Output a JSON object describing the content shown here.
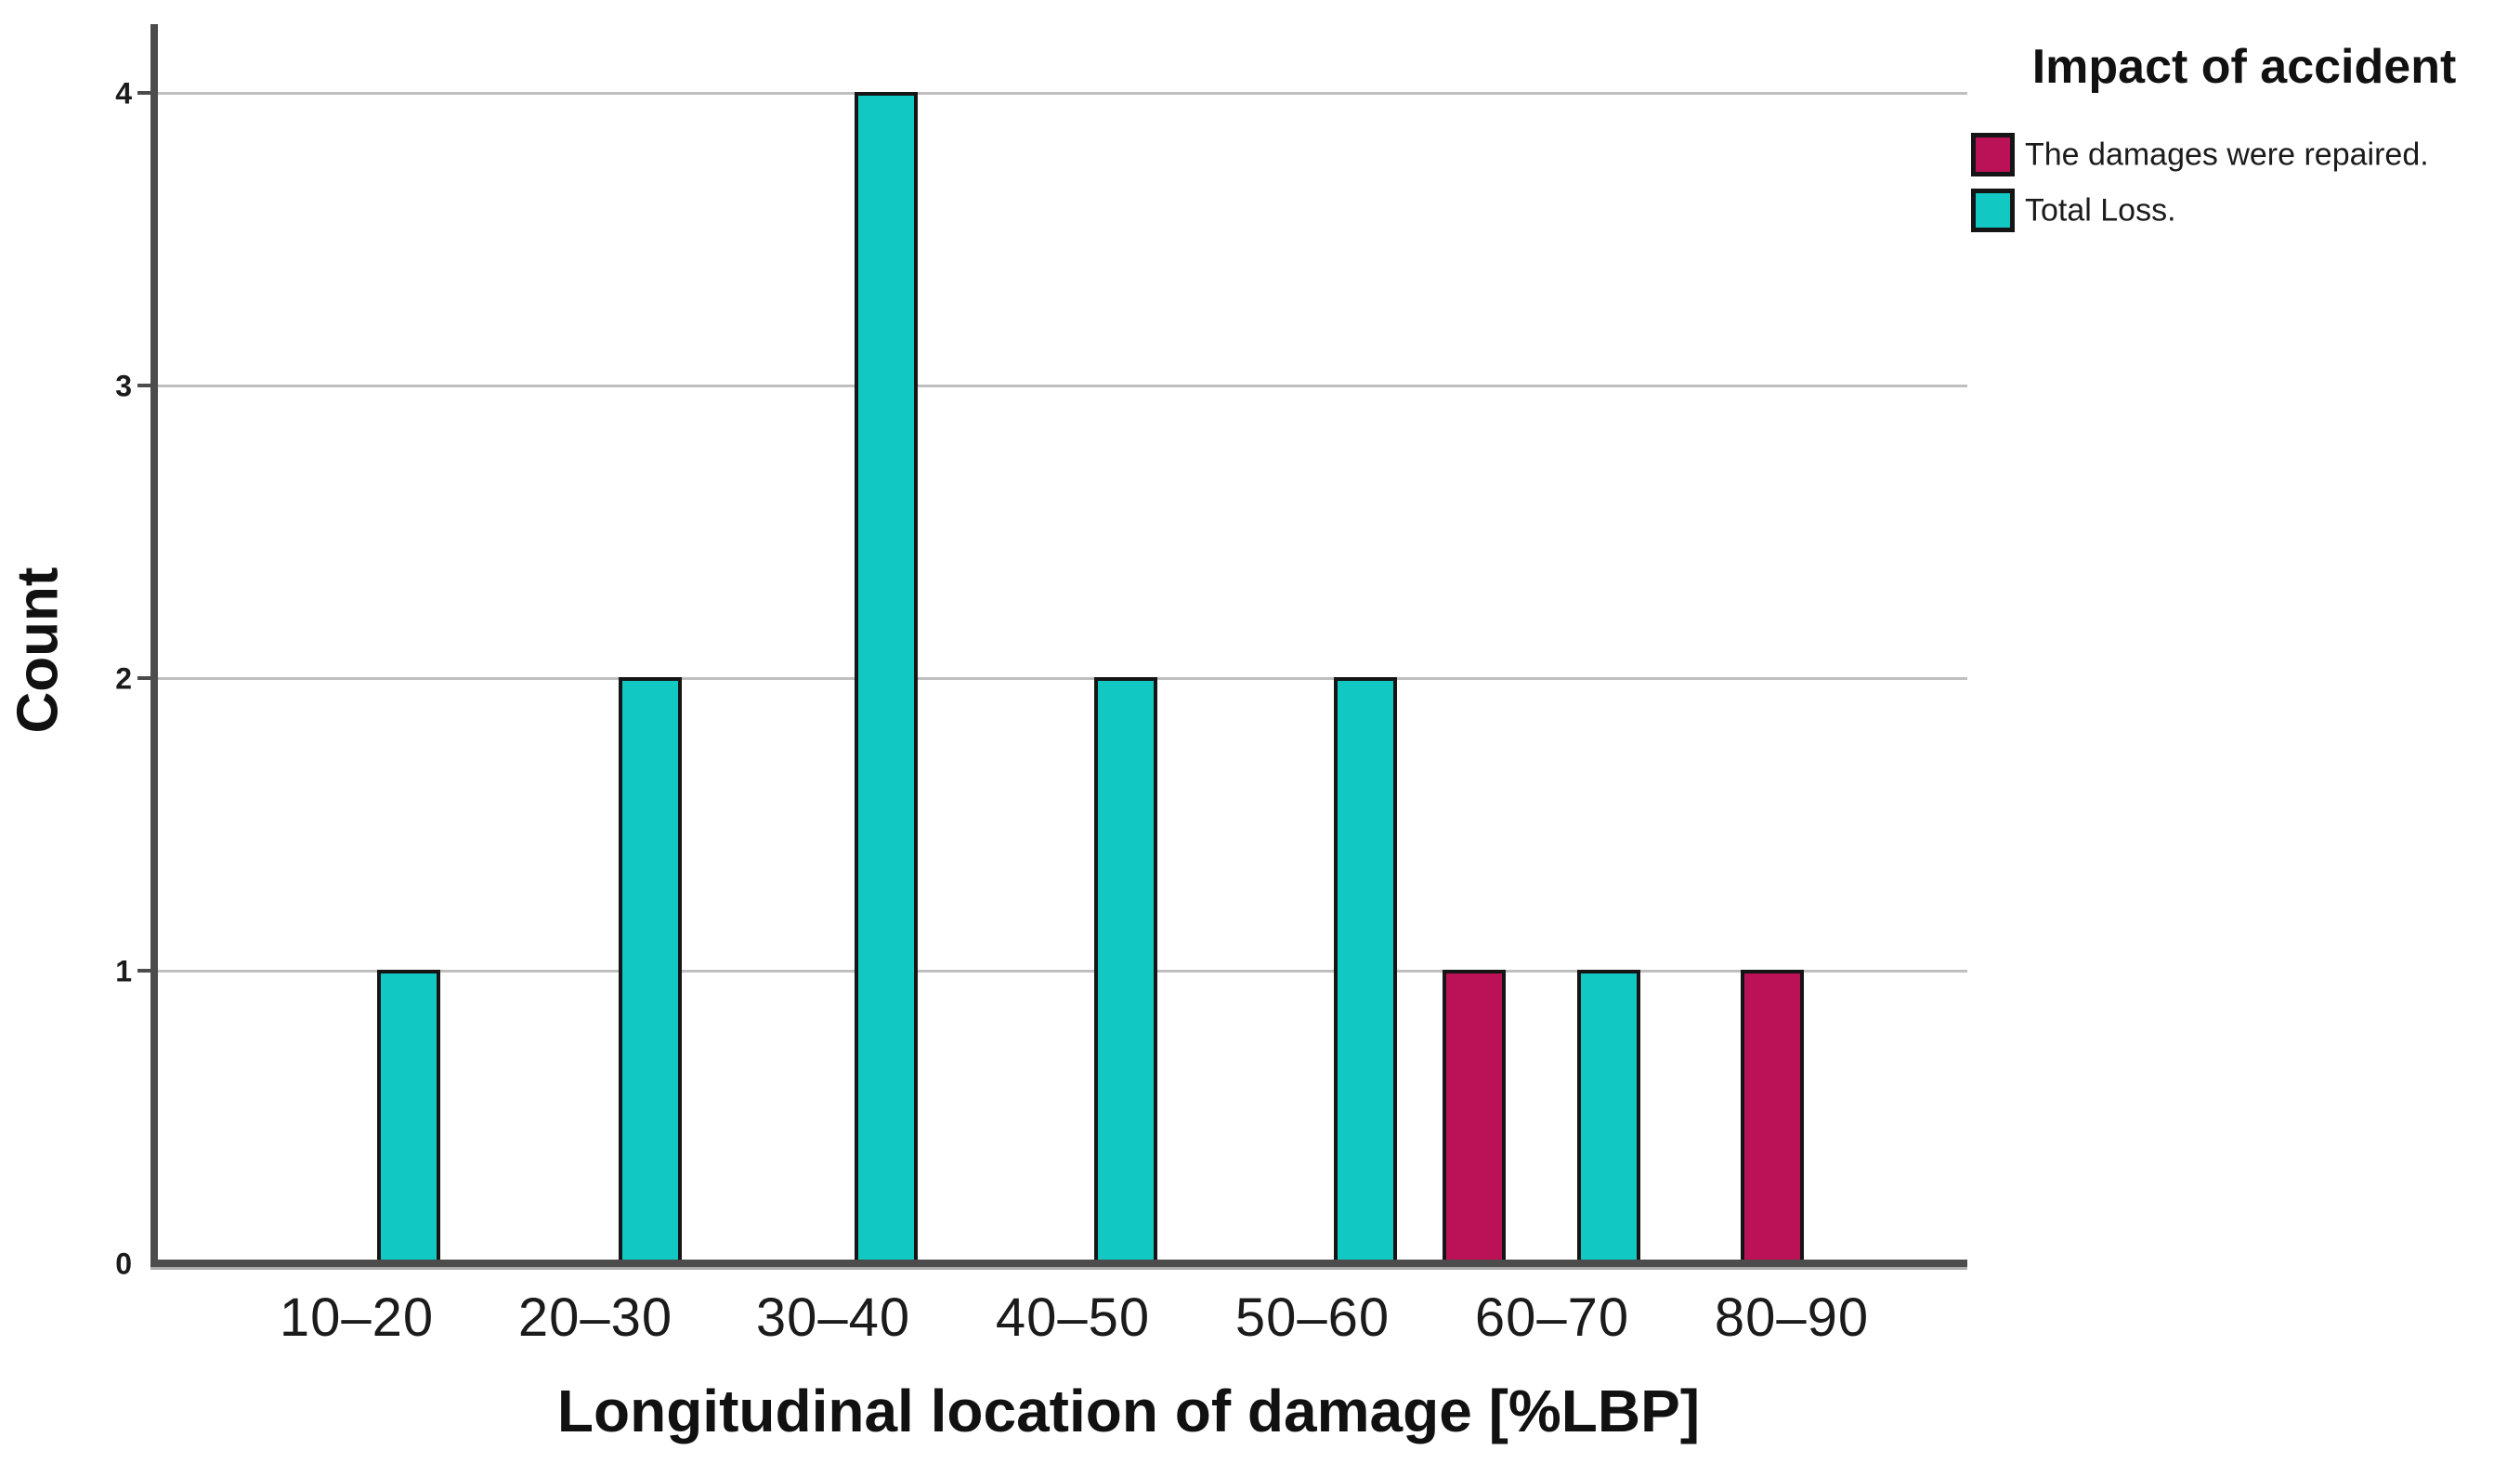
{
  "chart_data": {
    "type": "bar",
    "title": "",
    "xlabel": "Longitudinal location of damage [%LBP]",
    "ylabel": "Count",
    "categories": [
      "10–20",
      "20–30",
      "30–40",
      "40–50",
      "50–60",
      "60–70",
      "80–90"
    ],
    "series": [
      {
        "name": "The damages were repaired.",
        "color": "#bb1257",
        "values": [
          0,
          0,
          0,
          0,
          0,
          1,
          1
        ]
      },
      {
        "name": "Total Loss.",
        "color": "#11c8c3",
        "values": [
          1,
          2,
          4,
          2,
          2,
          1,
          0
        ]
      }
    ],
    "legend": {
      "title": "Impact of accident",
      "position": "top-right",
      "entries": [
        {
          "label": "The damages were repaired.",
          "color": "#bb1257"
        },
        {
          "label": "Total Loss.",
          "color": "#11c8c3"
        }
      ]
    },
    "yticks": [
      0,
      1,
      2,
      3,
      4
    ],
    "ylim": [
      0,
      4
    ],
    "grid": true,
    "colors": {
      "grid": "#bfbfbf",
      "axis": "#4c4c4c",
      "axis_shadow": "#ababab",
      "bar_border": "#151515",
      "text": "#1b1b1b",
      "background": "#ffffff"
    }
  }
}
